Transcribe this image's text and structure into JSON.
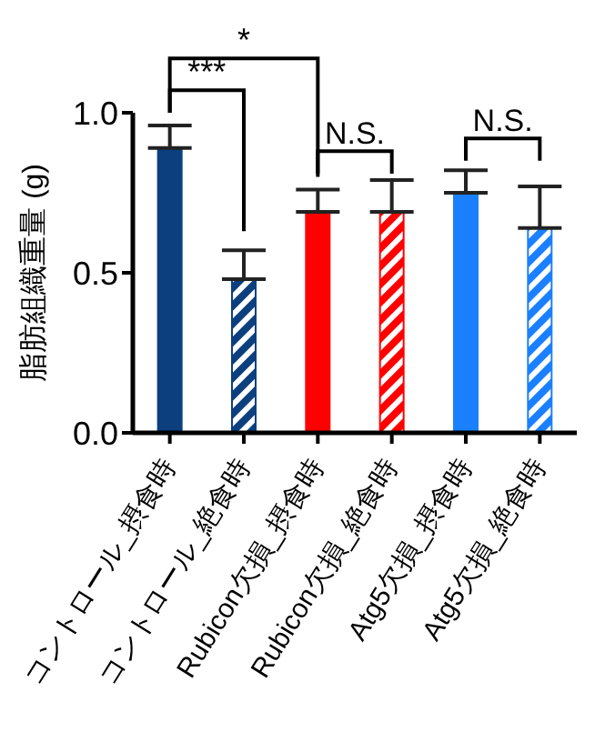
{
  "chart_data": {
    "type": "bar",
    "ylabel": "脂肪組織重量 (g)",
    "categories": [
      "コントロール_摂食時",
      "コントロール_絶食時",
      "Rubicon欠損_摂食時",
      "Rubicon欠損_絶食時",
      "Atg5欠損_摂食時",
      "Atg5欠損_絶食時"
    ],
    "values": [
      0.89,
      0.48,
      0.69,
      0.69,
      0.75,
      0.64
    ],
    "colors": [
      "#0c3f7e",
      "#0c3f7e",
      "#ff0000",
      "#ff0000",
      "#1a80ff",
      "#1a80ff"
    ],
    "errors": [
      [
        0.89,
        0.96
      ],
      [
        0.48,
        0.57
      ],
      [
        0.69,
        0.76
      ],
      [
        0.69,
        0.79
      ],
      [
        0.75,
        0.82
      ],
      [
        0.64,
        0.77
      ]
    ],
    "ylim": [
      0,
      1.0
    ],
    "yticks": [
      {
        "value": 0,
        "label": "0.0"
      },
      0.5,
      {
        "value": 1,
        "label": "1.0"
      }
    ],
    "grid": false,
    "legend": false,
    "annotations": [
      "*",
      "***",
      "N.S.",
      "N.S."
    ]
  }
}
